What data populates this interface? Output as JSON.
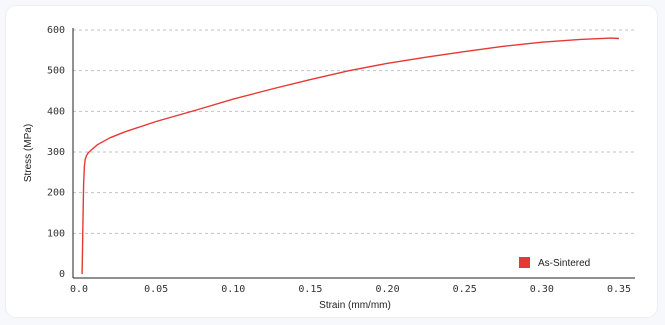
{
  "chart_data": {
    "type": "line",
    "title": "",
    "xlabel": "Strain (mm/mm)",
    "ylabel": "Stress (MPa)",
    "xlim": [
      0.0,
      0.35
    ],
    "ylim": [
      0,
      600
    ],
    "x_ticks": [
      "0.0",
      "0.05",
      "0.10",
      "0.15",
      "0.20",
      "0.25",
      "0.30",
      "0.35"
    ],
    "x_tick_values": [
      0.0,
      0.05,
      0.1,
      0.15,
      0.2,
      0.25,
      0.3,
      0.35
    ],
    "y_ticks": [
      "0",
      "100",
      "200",
      "300",
      "400",
      "500",
      "600"
    ],
    "y_tick_values": [
      0,
      100,
      200,
      300,
      400,
      500,
      600
    ],
    "grid": "horizontal-dashed",
    "legend_position": "bottom-right",
    "series": [
      {
        "name": "As-Sintered",
        "color": "#e53935",
        "x": [
          0.002,
          0.0025,
          0.003,
          0.0035,
          0.004,
          0.005,
          0.006,
          0.008,
          0.012,
          0.02,
          0.03,
          0.05,
          0.075,
          0.1,
          0.125,
          0.15,
          0.175,
          0.2,
          0.225,
          0.25,
          0.275,
          0.3,
          0.325,
          0.345,
          0.35
        ],
        "y": [
          0,
          120,
          220,
          265,
          282,
          292,
          298,
          305,
          318,
          335,
          350,
          375,
          402,
          430,
          455,
          478,
          500,
          518,
          533,
          547,
          560,
          570,
          577,
          580,
          579
        ]
      }
    ]
  }
}
